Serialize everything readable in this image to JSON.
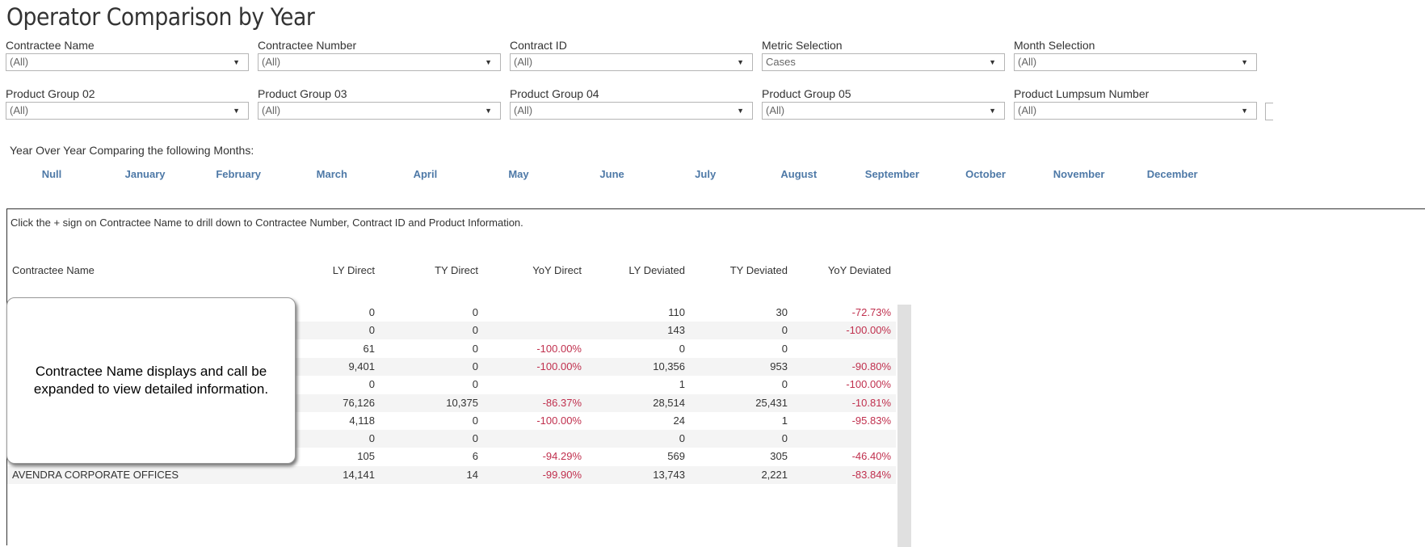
{
  "title": "Operator Comparison by Year",
  "filters": [
    {
      "label": "Contractee Name",
      "value": "(All)"
    },
    {
      "label": "Contractee Number",
      "value": "(All)"
    },
    {
      "label": "Contract ID",
      "value": "(All)"
    },
    {
      "label": "Metric Selection",
      "value": "Cases"
    },
    {
      "label": "Month Selection",
      "value": "(All)"
    },
    {
      "label": "Product Group 02",
      "value": "(All)"
    },
    {
      "label": "Product Group 03",
      "value": "(All)"
    },
    {
      "label": "Product Group 04",
      "value": "(All)"
    },
    {
      "label": "Product Group 05",
      "value": "(All)"
    },
    {
      "label": "Product Lumpsum Number",
      "value": "(All)"
    }
  ],
  "months_label": "Year Over Year Comparing the following Months:",
  "months": [
    "Null",
    "January",
    "February",
    "March",
    "April",
    "May",
    "June",
    "July",
    "August",
    "September",
    "October",
    "November",
    "December"
  ],
  "table": {
    "hint": "Click the + sign on Contractee Name to drill down to Contractee Number, Contract ID and Product Information.",
    "headers": [
      "Contractee Name",
      "LY Direct",
      "TY Direct",
      "YoY Direct",
      "LY Deviated",
      "TY Deviated",
      "YoY Deviated"
    ],
    "rows": [
      [
        "",
        "0",
        "0",
        "",
        "110",
        "30",
        "-72.73%"
      ],
      [
        "",
        "0",
        "0",
        "",
        "143",
        "0",
        "-100.00%"
      ],
      [
        "",
        "61",
        "0",
        "-100.00%",
        "0",
        "0",
        ""
      ],
      [
        "",
        "9,401",
        "0",
        "-100.00%",
        "10,356",
        "953",
        "-90.80%"
      ],
      [
        "",
        "0",
        "0",
        "",
        "1",
        "0",
        "-100.00%"
      ],
      [
        "",
        "76,126",
        "10,375",
        "-86.37%",
        "28,514",
        "25,431",
        "-10.81%"
      ],
      [
        "",
        "4,118",
        "0",
        "-100.00%",
        "24",
        "1",
        "-95.83%"
      ],
      [
        "",
        "0",
        "0",
        "",
        "0",
        "0",
        ""
      ],
      [
        "",
        "105",
        "6",
        "-94.29%",
        "569",
        "305",
        "-46.40%"
      ],
      [
        "AVENDRA CORPORATE OFFICES",
        "14,141",
        "14",
        "-99.90%",
        "13,743",
        "2,221",
        "-83.84%"
      ]
    ]
  },
  "callout": "Contractee Name displays and call be expanded to view detailed information.",
  "colors": {
    "month_link": "#4e79a7",
    "negative": "#c0304e"
  }
}
